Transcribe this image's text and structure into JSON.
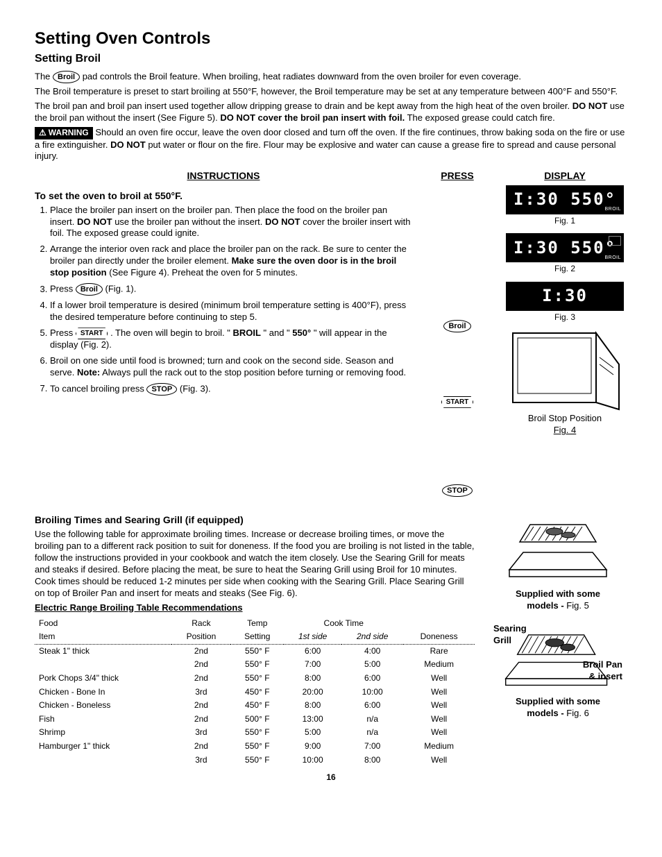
{
  "title": "Setting Oven Controls",
  "section": "Setting Broil",
  "intro": {
    "p1a": "The ",
    "broil_pad": "Broil",
    "p1b": " pad controls the Broil feature. When broiling, heat radiates downward from the oven broiler for even coverage.",
    "p2": "The Broil temperature is preset to start broiling at 550°F, however, the Broil temperature may be set at any temperature between 400°F and 550°F.",
    "p3a": "The broil pan and broil pan insert used together allow dripping grease to drain and be kept away from the high heat of the oven broiler. ",
    "p3b": "DO NOT",
    "p3c": " use the broil pan without the insert (See Figure 5). ",
    "p3d": "DO NOT cover the broil pan insert with foil.",
    "p3e": " The exposed grease could catch fire.",
    "warn_label": "WARNING",
    "warn_a": " Should an oven fire occur, leave the oven door closed and turn off the oven. If the fire continues, throw baking soda on the fire or use a fire extinguisher. ",
    "warn_b": "DO NOT",
    "warn_c": " put water or flour on the fire. Flour may be explosive and water can cause a grease fire to spread and cause personal injury."
  },
  "headers": {
    "instructions": "INSTRUCTIONS",
    "press": "PRESS",
    "display": "DISPLAY"
  },
  "subhead": "To set the oven to broil at 550°F.",
  "steps": {
    "s1a": "Place the broiler pan insert on the broiler pan. Then place the food on the broiler pan insert. ",
    "s1b": "DO NOT",
    "s1c": " use the broiler pan without the insert. ",
    "s1d": "DO NOT",
    "s1e": " cover the broiler insert with foil. The exposed grease could ignite.",
    "s2a": "Arrange the interior oven rack and place the broiler pan on the rack. Be sure to center the broiler pan directly under the broiler element. ",
    "s2b": "Make sure the oven door is in the broil stop position",
    "s2c": " (See Figure 4). Preheat the oven for 5 minutes.",
    "s3a": "Press ",
    "s3b": " (Fig. 1).",
    "s4": "If a lower broil temperature is desired (minimum broil temperature setting is 400°F), press the desired temperature before continuing to step 5.",
    "s5a": "Press ",
    "s5b": ". The oven will begin to broil. \"",
    "s5c": "BROIL",
    "s5d": "\" and \"",
    "s5e": "550°",
    "s5f": "\" will appear in the display (Fig. 2).",
    "s6a": "Broil on one side until food is browned; turn and cook on the second side. Season and serve. ",
    "s6b": "Note:",
    "s6c": " Always pull the rack out to the stop position before turning or removing food.",
    "s7a": "To cancel broiling press ",
    "s7b": " (Fig. 3)."
  },
  "press_labels": {
    "broil": "Broil",
    "start": "START",
    "stop": "STOP"
  },
  "displays": {
    "d1": "I:30 550°",
    "d1_tag": "BROIL",
    "d2": "I:30 550°",
    "d2_tag": "BROIL",
    "d3": "I:30"
  },
  "figs": {
    "f1": "Fig. 1",
    "f2": "Fig. 2",
    "f3": "Fig. 3",
    "f4a": "Broil Stop Position",
    "f4b": "Fig. 4",
    "f5a": "Supplied with some",
    "f5b": "models - ",
    "f5c": "Fig. 5",
    "f6a": "Searing",
    "f6b": "Grill",
    "f6c": "Broil Pan",
    "f6d": "& insert",
    "f6e": "Supplied with some",
    "f6f": "models - ",
    "f6g": "Fig. 6"
  },
  "broiling_section": {
    "title": "Broiling Times and Searing Grill (if equipped)",
    "p": "Use the following table for approximate broiling times. Increase or decrease broiling times, or move the broiling pan to a different rack position to suit for doneness. If the food you are broiling is not listed in the table, follow the instructions provided in your cookbook and watch the item closely. Use the Searing Grill for meats and steaks if desired. Before placing the meat, be sure to heat the Searing Grill using Broil for 10 minutes. Cook times should be reduced 1-2 minutes per side when cooking with the Searing Grill. Place Searing Grill on top of Broiler Pan and insert for meats and steaks (See Fig. 6)."
  },
  "table": {
    "title": "Electric Range Broiling Table Recommendations",
    "h1a": "Food",
    "h1b": "Item",
    "h2a": "Rack",
    "h2b": "Position",
    "h3a": "Temp",
    "h3b": "Setting",
    "h4": "Cook Time",
    "h4a": "1st side",
    "h4b": "2nd side",
    "h5": "Doneness",
    "rows": [
      {
        "food": "Steak 1\" thick",
        "rack": "2nd",
        "temp": "550° F",
        "t1": "6:00",
        "t2": "4:00",
        "done": "Rare"
      },
      {
        "food": "",
        "rack": "2nd",
        "temp": "550° F",
        "t1": "7:00",
        "t2": "5:00",
        "done": "Medium"
      },
      {
        "food": "Pork Chops 3/4\" thick",
        "rack": "2nd",
        "temp": "550° F",
        "t1": "8:00",
        "t2": "6:00",
        "done": "Well"
      },
      {
        "food": "Chicken - Bone In",
        "rack": "3rd",
        "temp": "450° F",
        "t1": "20:00",
        "t2": "10:00",
        "done": "Well"
      },
      {
        "food": "Chicken - Boneless",
        "rack": "2nd",
        "temp": "450° F",
        "t1": "8:00",
        "t2": "6:00",
        "done": "Well"
      },
      {
        "food": "Fish",
        "rack": "2nd",
        "temp": "500° F",
        "t1": "13:00",
        "t2": "n/a",
        "done": "Well"
      },
      {
        "food": "Shrimp",
        "rack": "3rd",
        "temp": "550° F",
        "t1": "5:00",
        "t2": "n/a",
        "done": "Well"
      },
      {
        "food": "Hamburger 1\" thick",
        "rack": "2nd",
        "temp": "550° F",
        "t1": "9:00",
        "t2": "7:00",
        "done": "Medium"
      },
      {
        "food": "",
        "rack": "3rd",
        "temp": "550° F",
        "t1": "10:00",
        "t2": "8:00",
        "done": "Well"
      }
    ]
  },
  "page": "16"
}
